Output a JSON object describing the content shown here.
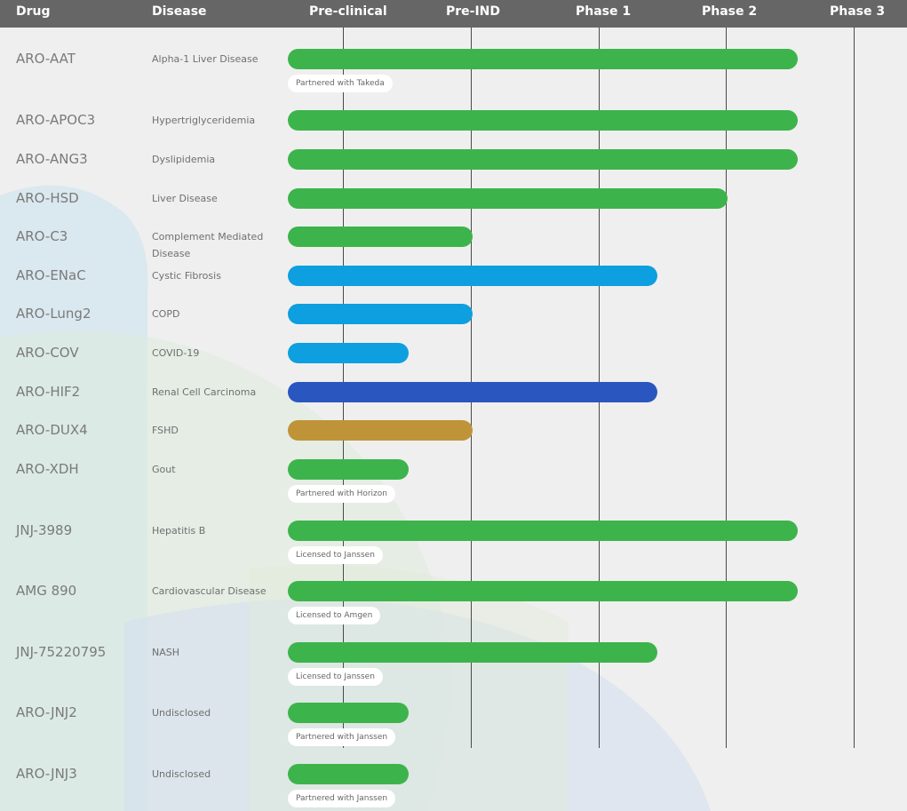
{
  "header": {
    "drug": "Drug",
    "disease": "Disease",
    "stages": [
      "Pre-clinical",
      "Pre-IND",
      "Phase 1",
      "Phase 2",
      "Phase 3"
    ]
  },
  "colors": {
    "green": "#3cb44b",
    "light_blue": "#0d9fe0",
    "dark_blue": "#2a56bf",
    "gold": "#bf9438",
    "header_bg": "#666666"
  },
  "chart_data": {
    "type": "bar",
    "orientation": "horizontal",
    "stages": [
      "Pre-clinical",
      "Pre-IND",
      "Phase 1",
      "Phase 2",
      "Phase 3"
    ],
    "progress_unit": "stage columns completed (0-5 scale)",
    "rows": [
      {
        "drug": "ARO-AAT",
        "disease": "Alpha-1 Liver Disease",
        "progress": 4.0,
        "color": "#3cb44b",
        "note": "Partnered with Takeda"
      },
      {
        "drug": "ARO-APOC3",
        "disease": "Hypertriglyceridemia",
        "progress": 4.0,
        "color": "#3cb44b",
        "note": ""
      },
      {
        "drug": "ARO-ANG3",
        "disease": "Dyslipidemia",
        "progress": 4.0,
        "color": "#3cb44b",
        "note": ""
      },
      {
        "drug": "ARO-HSD",
        "disease": "Liver Disease",
        "progress": 3.45,
        "color": "#3cb44b",
        "note": ""
      },
      {
        "drug": "ARO-C3",
        "disease": "Complement Mediated Disease",
        "progress": 1.45,
        "color": "#3cb44b",
        "note": ""
      },
      {
        "drug": "ARO-ENaC",
        "disease": "Cystic Fibrosis",
        "progress": 2.9,
        "color": "#0d9fe0",
        "note": ""
      },
      {
        "drug": "ARO-Lung2",
        "disease": "COPD",
        "progress": 1.45,
        "color": "#0d9fe0",
        "note": ""
      },
      {
        "drug": "ARO-COV",
        "disease": "COVID-19",
        "progress": 0.95,
        "color": "#0d9fe0",
        "note": ""
      },
      {
        "drug": "ARO-HIF2",
        "disease": "Renal Cell Carcinoma",
        "progress": 2.9,
        "color": "#2a56bf",
        "note": ""
      },
      {
        "drug": "ARO-DUX4",
        "disease": "FSHD",
        "progress": 1.45,
        "color": "#bf9438",
        "note": ""
      },
      {
        "drug": "ARO-XDH",
        "disease": "Gout",
        "progress": 0.95,
        "color": "#3cb44b",
        "note": "Partnered with Horizon"
      },
      {
        "drug": "JNJ-3989",
        "disease": "Hepatitis B",
        "progress": 4.0,
        "color": "#3cb44b",
        "note": "Licensed to Janssen"
      },
      {
        "drug": "AMG 890",
        "disease": "Cardiovascular Disease",
        "progress": 4.0,
        "color": "#3cb44b",
        "note": "Licensed to Amgen"
      },
      {
        "drug": "JNJ-75220795",
        "disease": "NASH",
        "progress": 2.9,
        "color": "#3cb44b",
        "note": "Licensed to Janssen"
      },
      {
        "drug": "ARO-JNJ2",
        "disease": "Undisclosed",
        "progress": 0.95,
        "color": "#3cb44b",
        "note": "Partnered with Janssen"
      },
      {
        "drug": "ARO-JNJ3",
        "disease": "Undisclosed",
        "progress": 0.95,
        "color": "#3cb44b",
        "note": "Partnered with Janssen"
      }
    ]
  }
}
